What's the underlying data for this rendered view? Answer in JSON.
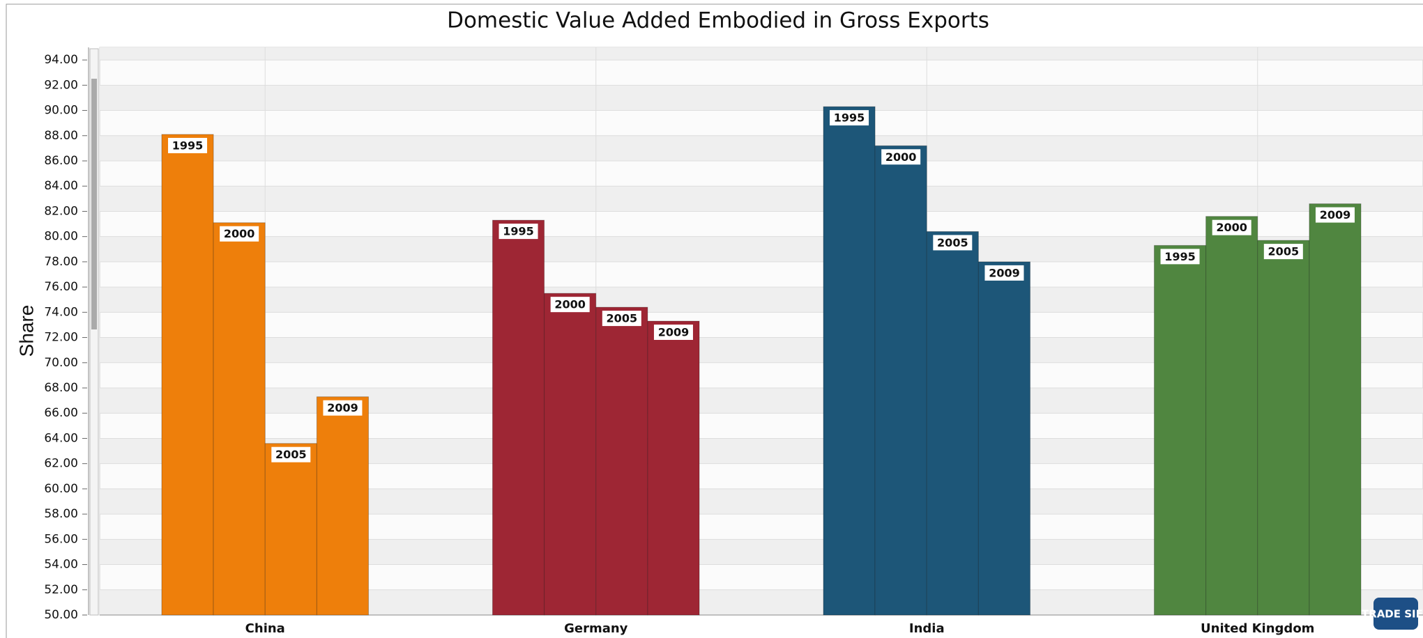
{
  "chart_data": {
    "type": "bar",
    "title": "Domestic Value Added Embodied in Gross Exports",
    "y_label": "Share",
    "logo": "TRADE SIFT",
    "categories": [
      "China",
      "Germany",
      "India",
      "United Kingdom"
    ],
    "colors": [
      "#ee7f0b",
      "#9e2634",
      "#1d5678",
      "#508640"
    ],
    "series": [
      {
        "name": "1995",
        "values": [
          88.1,
          81.3,
          90.3,
          79.3
        ]
      },
      {
        "name": "2000",
        "values": [
          81.1,
          75.5,
          87.2,
          81.6
        ]
      },
      {
        "name": "2005",
        "values": [
          63.6,
          74.4,
          80.4,
          79.7
        ]
      },
      {
        "name": "2009",
        "values": [
          67.3,
          73.3,
          78.0,
          82.6
        ]
      }
    ],
    "ylim": [
      50,
      95
    ],
    "yticks": [
      {
        "value": 50,
        "label": "50.00"
      },
      {
        "value": 52,
        "label": "52.00"
      },
      {
        "value": 54,
        "label": "54.00"
      },
      {
        "value": 56,
        "label": "56.00"
      },
      {
        "value": 58,
        "label": "58.00"
      },
      {
        "value": 60,
        "label": "60.00"
      },
      {
        "value": 62,
        "label": "62.00"
      },
      {
        "value": 64,
        "label": "64.00"
      },
      {
        "value": 66,
        "label": "66.00"
      },
      {
        "value": 68,
        "label": "68.00"
      },
      {
        "value": 70,
        "label": "70.00"
      },
      {
        "value": 72,
        "label": "72.00"
      },
      {
        "value": 74,
        "label": "74.00"
      },
      {
        "value": 76,
        "label": "76.00"
      },
      {
        "value": 78,
        "label": "78.00"
      },
      {
        "value": 80,
        "label": "80.00"
      },
      {
        "value": 82,
        "label": "82.00"
      },
      {
        "value": 84,
        "label": "84.00"
      },
      {
        "value": 86,
        "label": "86.00"
      },
      {
        "value": 88,
        "label": "88.00"
      },
      {
        "value": 90,
        "label": "90.00"
      },
      {
        "value": 92,
        "label": "92.00"
      },
      {
        "value": 94,
        "label": "94.00"
      }
    ],
    "grid": true
  }
}
